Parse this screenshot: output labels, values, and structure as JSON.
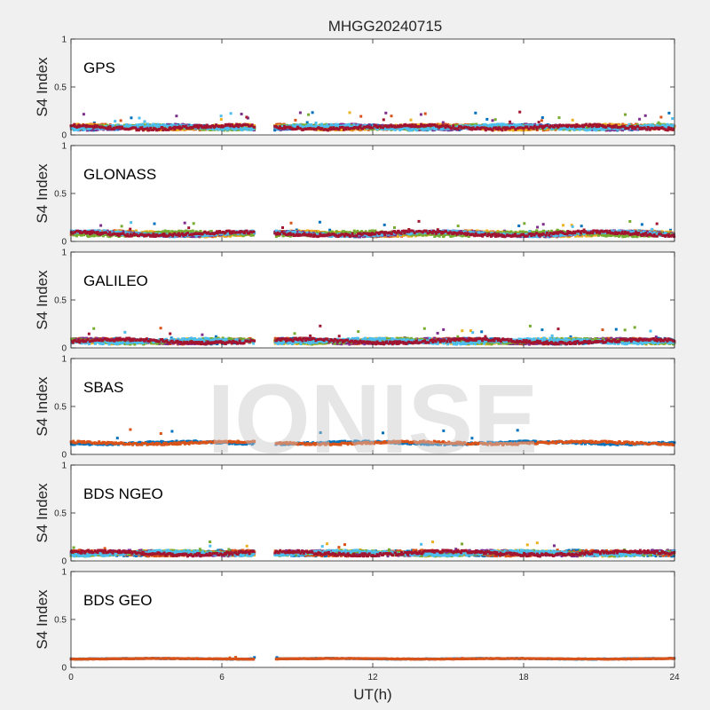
{
  "figure": {
    "title": "MHGG20240715",
    "watermark": "IONISE",
    "xlabel": "UT(h)",
    "x_ticks": [
      0,
      6,
      12,
      18,
      24
    ]
  },
  "chart_data": {
    "type": "scatter",
    "xlim": [
      0,
      24
    ],
    "ylim": [
      0,
      1
    ],
    "y_ticks": [
      0,
      0.5,
      1
    ],
    "data_gap_hours": [
      7.3,
      8.1
    ],
    "palette": [
      "#0072BD",
      "#D95319",
      "#EDB120",
      "#7E2F8E",
      "#77AC30",
      "#4DBEEE",
      "#A2142F"
    ],
    "panels": [
      {
        "label": "GPS",
        "ylabel": "S4 Index",
        "base_s4": 0.08,
        "spread": 0.03,
        "max_s4": 0.24,
        "series_count": 7
      },
      {
        "label": "GLONASS",
        "ylabel": "S4 Index",
        "base_s4": 0.08,
        "spread": 0.03,
        "max_s4": 0.21,
        "series_count": 7
      },
      {
        "label": "GALILEO",
        "ylabel": "S4 Index",
        "base_s4": 0.07,
        "spread": 0.03,
        "max_s4": 0.23,
        "series_count": 7
      },
      {
        "label": "SBAS",
        "ylabel": "S4 Index",
        "base_s4": 0.12,
        "spread": 0.02,
        "max_s4": 0.29,
        "series_count": 2
      },
      {
        "label": "BDS NGEO",
        "ylabel": "S4 Index",
        "base_s4": 0.08,
        "spread": 0.03,
        "max_s4": 0.2,
        "series_count": 7
      },
      {
        "label": "BDS GEO",
        "ylabel": "S4 Index",
        "base_s4": 0.09,
        "spread": 0.005,
        "max_s4": 0.11,
        "series_count": 2
      }
    ]
  }
}
